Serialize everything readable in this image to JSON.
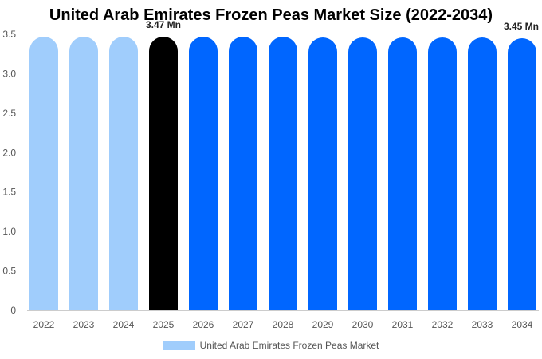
{
  "chart_data": {
    "type": "bar",
    "title": "United Arab Emirates Frozen Peas Market Size (2022-2034)",
    "categories": [
      "2022",
      "2023",
      "2024",
      "2025",
      "2026",
      "2027",
      "2028",
      "2029",
      "2030",
      "2031",
      "2032",
      "2033",
      "2034"
    ],
    "series": [
      {
        "name": "United Arab Emirates Frozen Peas Market",
        "values": [
          3.47,
          3.47,
          3.47,
          3.47,
          3.47,
          3.47,
          3.47,
          3.46,
          3.46,
          3.46,
          3.46,
          3.46,
          3.45
        ]
      }
    ],
    "bar_colors": [
      "#a0cdfc",
      "#a0cdfc",
      "#a0cdfc",
      "#000000",
      "#0066ff",
      "#0066ff",
      "#0066ff",
      "#0066ff",
      "#0066ff",
      "#0066ff",
      "#0066ff",
      "#0066ff",
      "#0066ff"
    ],
    "data_labels": [
      {
        "category": "2025",
        "text": "3.47 Mn"
      },
      {
        "category": "2034",
        "text": "3.45 Mn"
      }
    ],
    "yticks": [
      "0",
      "0.5",
      "1.0",
      "1.5",
      "2.0",
      "2.5",
      "3.0",
      "3.5"
    ],
    "ylim": [
      0,
      3.5
    ],
    "grid": false,
    "legend_position": "bottom-center",
    "legend_color": "#a0cdfc",
    "xlabel": "",
    "ylabel": ""
  }
}
